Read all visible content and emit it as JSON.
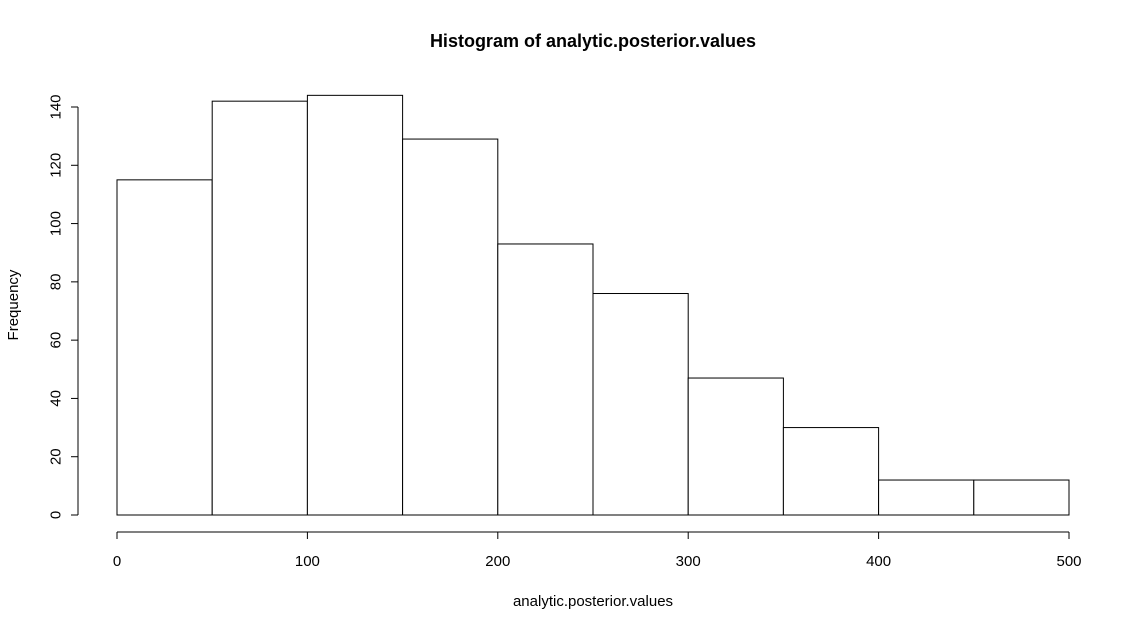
{
  "chart_data": {
    "type": "bar",
    "title": "Histogram of analytic.posterior.values",
    "xlabel": "analytic.posterior.values",
    "ylabel": "Frequency",
    "bins": [
      [
        0,
        50
      ],
      [
        50,
        100
      ],
      [
        100,
        150
      ],
      [
        150,
        200
      ],
      [
        200,
        250
      ],
      [
        250,
        300
      ],
      [
        300,
        350
      ],
      [
        350,
        400
      ],
      [
        400,
        450
      ],
      [
        450,
        500
      ]
    ],
    "values": [
      115,
      142,
      144,
      129,
      93,
      76,
      47,
      30,
      12,
      12
    ],
    "xlim": [
      0,
      500
    ],
    "ylim": [
      0,
      140
    ],
    "xticks": [
      0,
      100,
      200,
      300,
      400,
      500
    ],
    "yticks": [
      0,
      20,
      40,
      60,
      80,
      100,
      120,
      140
    ],
    "grid": false,
    "bar_fill": "#ffffff",
    "bar_stroke": "#000000"
  }
}
